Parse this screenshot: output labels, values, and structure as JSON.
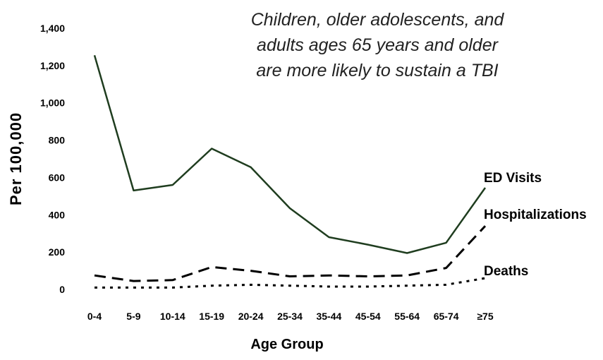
{
  "chart_data": {
    "type": "line",
    "title": "",
    "annotation": [
      "Children, older adolescents, and",
      "adults ages 65 years and older",
      "are more likely to sustain a TBI"
    ],
    "xlabel": "Age Group",
    "ylabel": "Per 100,000",
    "ylim": [
      0,
      1400
    ],
    "yticks": [
      "0",
      "200",
      "400",
      "600",
      "800",
      "1,000",
      "1,200",
      "1,400"
    ],
    "categories": [
      "0-4",
      "5-9",
      "10-14",
      "15-19",
      "20-24",
      "25-34",
      "35-44",
      "45-54",
      "55-64",
      "65-74",
      "≥75"
    ],
    "grid": false,
    "legend": "labels at line ends (right)",
    "series": [
      {
        "name": "ED Visits",
        "values": [
          1255,
          530,
          560,
          755,
          655,
          435,
          280,
          240,
          195,
          250,
          545
        ],
        "color": "#1f3d1f",
        "style": "solid"
      },
      {
        "name": "Hospitalizations",
        "values": [
          75,
          45,
          50,
          120,
          100,
          70,
          75,
          70,
          75,
          115,
          340
        ],
        "color": "#000000",
        "style": "dashed"
      },
      {
        "name": "Deaths",
        "values": [
          10,
          10,
          10,
          20,
          25,
          20,
          15,
          15,
          20,
          25,
          60
        ],
        "color": "#000000",
        "style": "dotted"
      }
    ]
  }
}
